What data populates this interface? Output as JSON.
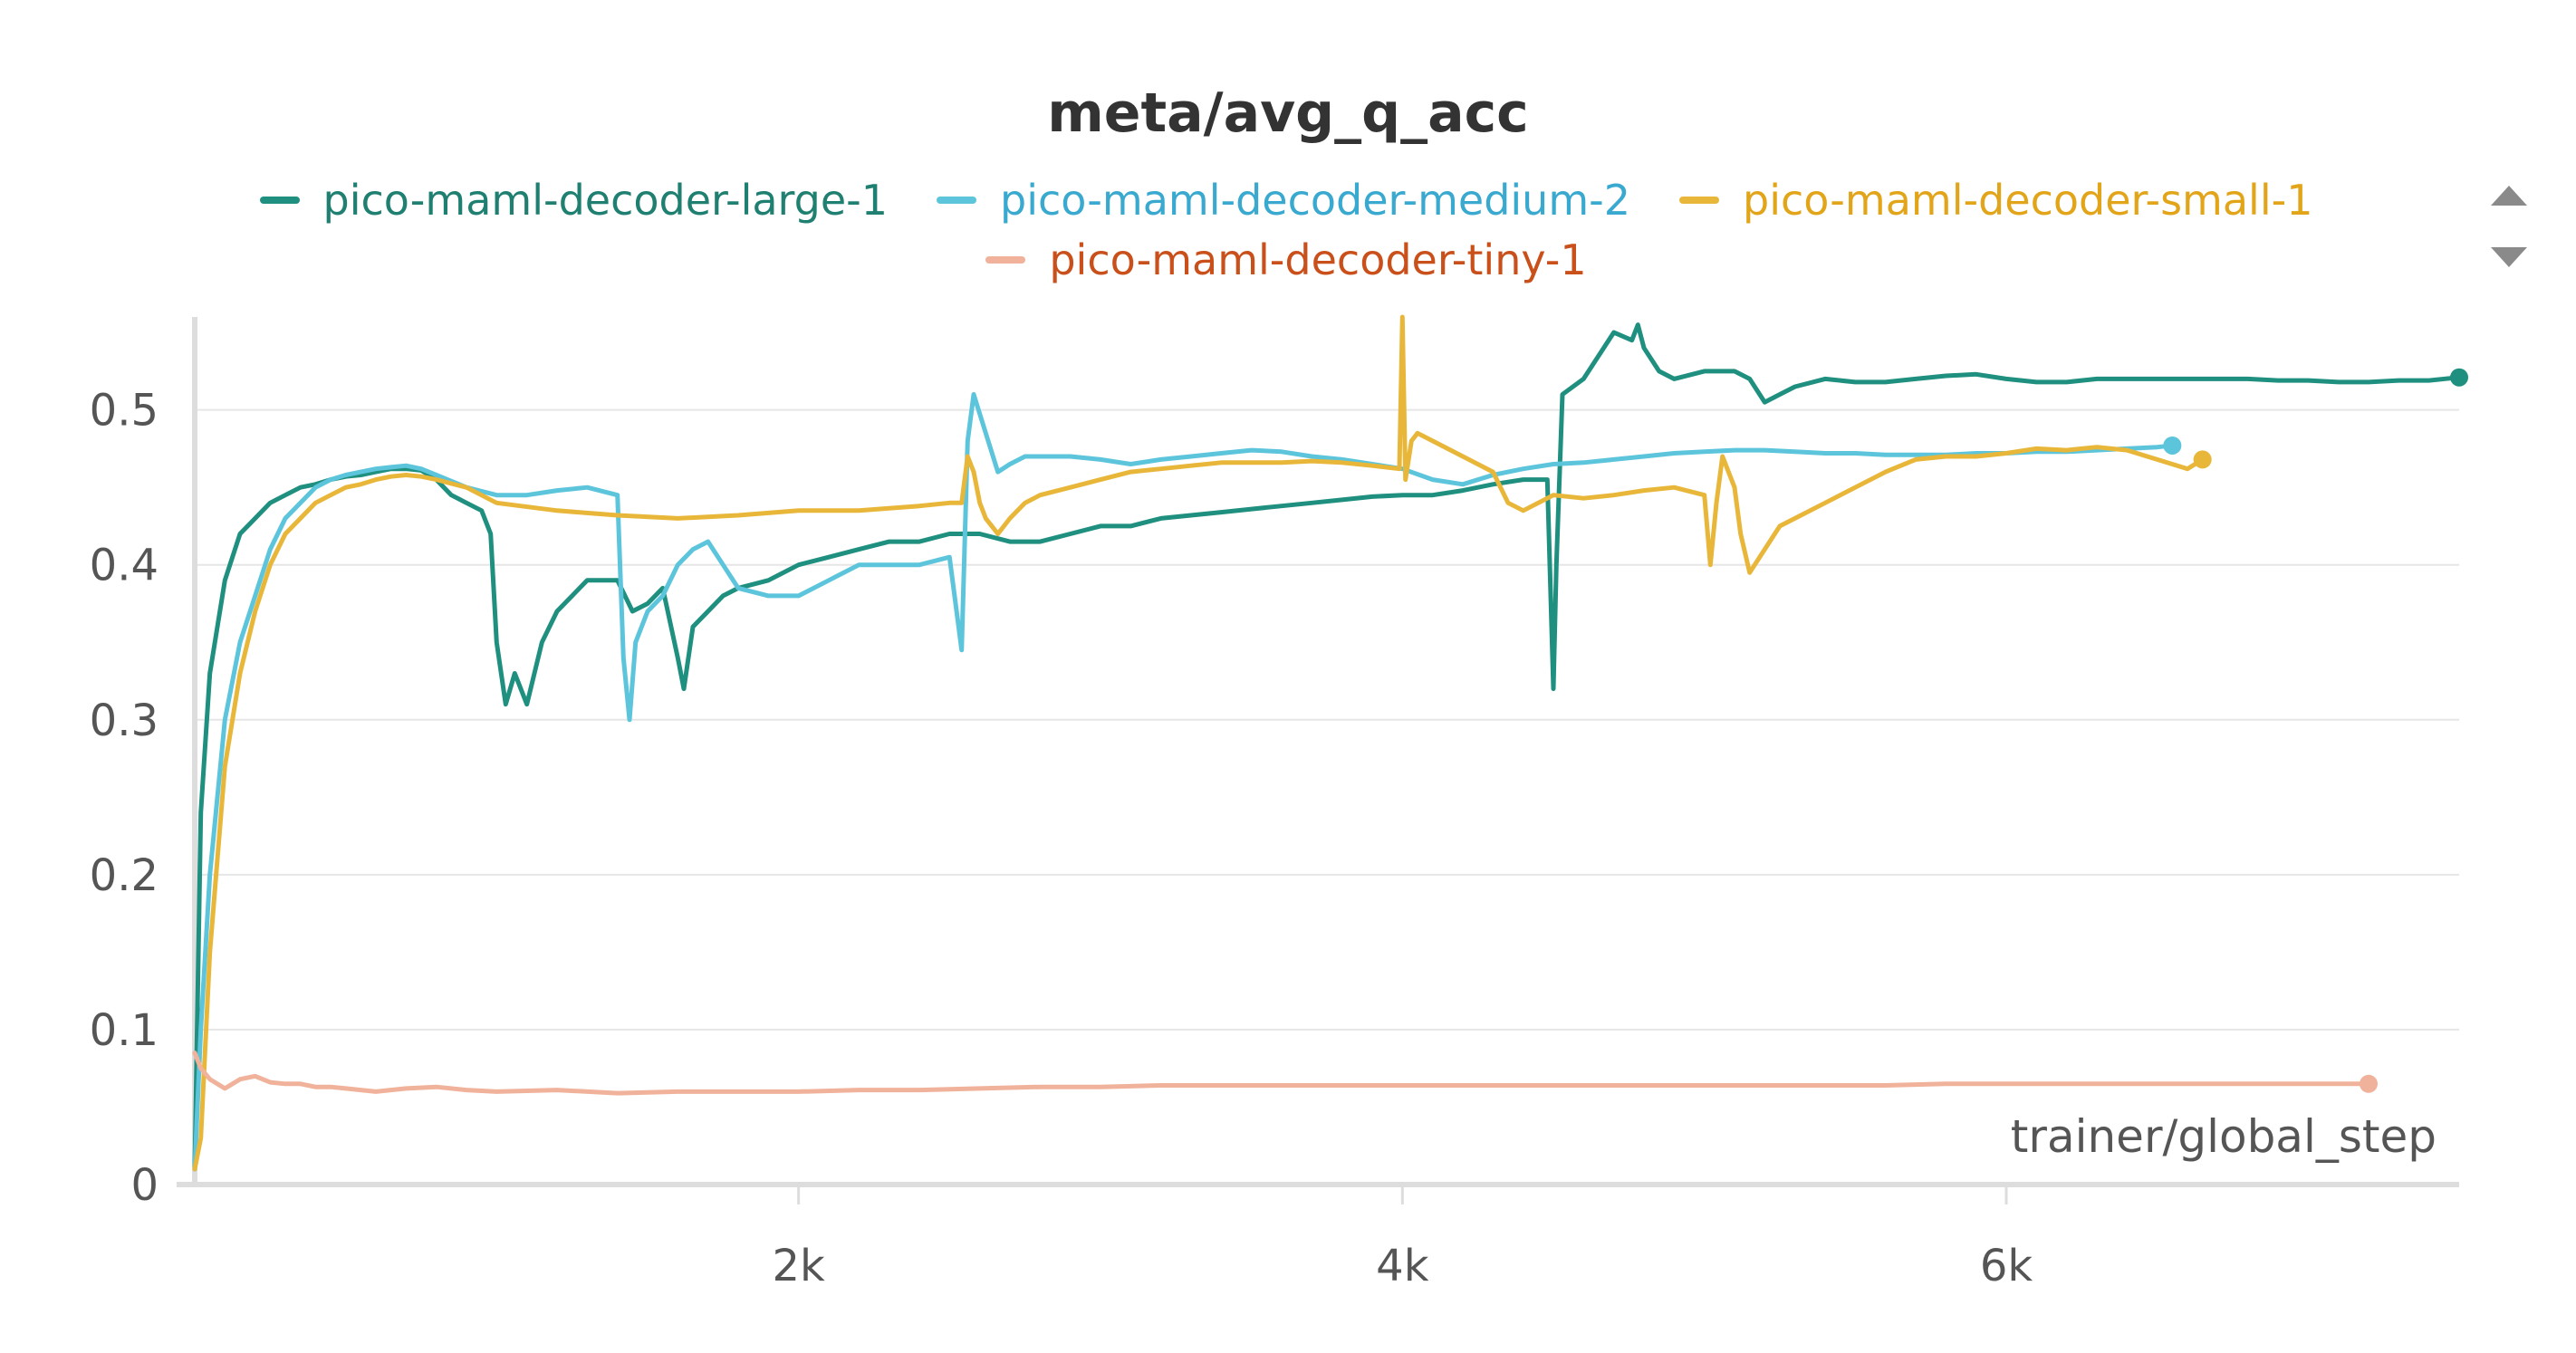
{
  "chart_data": {
    "type": "line",
    "title": "meta/avg_q_acc",
    "xlabel": "trainer/global_step",
    "ylabel": "",
    "xlim": [
      0,
      7500
    ],
    "ylim": [
      0,
      0.56
    ],
    "x_ticks": [
      2000,
      4000,
      6000
    ],
    "x_tick_labels": [
      "2k",
      "4k",
      "6k"
    ],
    "y_ticks": [
      0,
      0.1,
      0.2,
      0.3,
      0.4,
      0.5
    ],
    "y_tick_labels": [
      "0",
      "0.1",
      "0.2",
      "0.3",
      "0.4",
      "0.5"
    ],
    "grid": true,
    "legend_position": "top",
    "series": [
      {
        "name": "pico-maml-decoder-large-1",
        "color": "#1f8f7f",
        "label_color": "#1f7f70",
        "x": [
          0,
          20,
          50,
          100,
          150,
          200,
          250,
          300,
          350,
          400,
          450,
          500,
          550,
          600,
          650,
          700,
          750,
          800,
          850,
          900,
          950,
          980,
          1000,
          1030,
          1060,
          1100,
          1150,
          1200,
          1300,
          1400,
          1450,
          1500,
          1550,
          1600,
          1620,
          1650,
          1700,
          1750,
          1800,
          1900,
          2000,
          2100,
          2200,
          2300,
          2400,
          2500,
          2550,
          2600,
          2700,
          2800,
          2900,
          3000,
          3100,
          3200,
          3300,
          3400,
          3500,
          3600,
          3700,
          3800,
          3900,
          4000,
          4100,
          4200,
          4300,
          4400,
          4480,
          4500,
          4510,
          4530,
          4600,
          4650,
          4700,
          4760,
          4780,
          4800,
          4850,
          4900,
          5000,
          5100,
          5150,
          5200,
          5250,
          5300,
          5400,
          5500,
          5600,
          5700,
          5800,
          5900,
          6000,
          6100,
          6200,
          6300,
          6400,
          6500,
          6600,
          6700,
          6800,
          6900,
          7000,
          7100,
          7200,
          7300,
          7400,
          7500
        ],
        "y": [
          0.01,
          0.24,
          0.33,
          0.39,
          0.42,
          0.43,
          0.44,
          0.445,
          0.45,
          0.452,
          0.455,
          0.457,
          0.458,
          0.46,
          0.462,
          0.462,
          0.461,
          0.455,
          0.445,
          0.44,
          0.435,
          0.42,
          0.35,
          0.31,
          0.33,
          0.31,
          0.35,
          0.37,
          0.39,
          0.39,
          0.37,
          0.375,
          0.385,
          0.34,
          0.32,
          0.36,
          0.37,
          0.38,
          0.385,
          0.39,
          0.4,
          0.405,
          0.41,
          0.415,
          0.415,
          0.42,
          0.42,
          0.42,
          0.415,
          0.415,
          0.42,
          0.425,
          0.425,
          0.43,
          0.432,
          0.434,
          0.436,
          0.438,
          0.44,
          0.442,
          0.444,
          0.445,
          0.445,
          0.448,
          0.452,
          0.455,
          0.455,
          0.32,
          0.4,
          0.51,
          0.52,
          0.535,
          0.55,
          0.545,
          0.555,
          0.54,
          0.525,
          0.52,
          0.525,
          0.525,
          0.52,
          0.505,
          0.51,
          0.515,
          0.52,
          0.518,
          0.518,
          0.52,
          0.522,
          0.523,
          0.52,
          0.518,
          0.518,
          0.52,
          0.52,
          0.52,
          0.52,
          0.52,
          0.52,
          0.519,
          0.519,
          0.518,
          0.518,
          0.519,
          0.519,
          0.521
        ]
      },
      {
        "name": "pico-maml-decoder-medium-2",
        "color": "#5cc5dc",
        "label_color": "#3aa9cf",
        "x": [
          0,
          20,
          50,
          100,
          150,
          200,
          250,
          300,
          350,
          400,
          450,
          500,
          550,
          600,
          650,
          700,
          750,
          800,
          900,
          1000,
          1100,
          1200,
          1300,
          1400,
          1420,
          1440,
          1460,
          1500,
          1550,
          1600,
          1650,
          1700,
          1750,
          1800,
          1900,
          2000,
          2100,
          2200,
          2300,
          2400,
          2500,
          2540,
          2560,
          2580,
          2620,
          2660,
          2700,
          2750,
          2800,
          2900,
          3000,
          3100,
          3200,
          3300,
          3400,
          3500,
          3600,
          3700,
          3800,
          3900,
          4000,
          4100,
          4200,
          4300,
          4400,
          4500,
          4600,
          4700,
          4800,
          4900,
          5000,
          5100,
          5200,
          5300,
          5400,
          5500,
          5600,
          5700,
          5800,
          5900,
          6000,
          6100,
          6200,
          6300,
          6400,
          6500,
          6550
        ],
        "y": [
          0.01,
          0.1,
          0.2,
          0.3,
          0.35,
          0.38,
          0.41,
          0.43,
          0.44,
          0.45,
          0.455,
          0.458,
          0.46,
          0.462,
          0.463,
          0.464,
          0.462,
          0.458,
          0.45,
          0.445,
          0.445,
          0.448,
          0.45,
          0.445,
          0.34,
          0.3,
          0.35,
          0.37,
          0.38,
          0.4,
          0.41,
          0.415,
          0.4,
          0.385,
          0.38,
          0.38,
          0.39,
          0.4,
          0.4,
          0.4,
          0.405,
          0.345,
          0.48,
          0.51,
          0.485,
          0.46,
          0.465,
          0.47,
          0.47,
          0.47,
          0.468,
          0.465,
          0.468,
          0.47,
          0.472,
          0.474,
          0.473,
          0.47,
          0.468,
          0.465,
          0.462,
          0.455,
          0.452,
          0.458,
          0.462,
          0.465,
          0.466,
          0.468,
          0.47,
          0.472,
          0.473,
          0.474,
          0.474,
          0.473,
          0.472,
          0.472,
          0.471,
          0.471,
          0.471,
          0.472,
          0.472,
          0.473,
          0.473,
          0.474,
          0.475,
          0.476,
          0.477
        ]
      },
      {
        "name": "pico-maml-decoder-small-1",
        "color": "#e8b73a",
        "label_color": "#e2a51a",
        "x": [
          0,
          20,
          50,
          100,
          150,
          200,
          250,
          300,
          350,
          400,
          450,
          500,
          550,
          600,
          650,
          700,
          750,
          800,
          900,
          1000,
          1200,
          1400,
          1600,
          1800,
          2000,
          2200,
          2400,
          2500,
          2540,
          2560,
          2580,
          2600,
          2620,
          2660,
          2700,
          2750,
          2800,
          2900,
          3000,
          3100,
          3200,
          3300,
          3400,
          3500,
          3600,
          3700,
          3800,
          3900,
          3990,
          4000,
          4010,
          4030,
          4050,
          4100,
          4200,
          4300,
          4350,
          4400,
          4450,
          4500,
          4600,
          4700,
          4800,
          4900,
          5000,
          5020,
          5040,
          5060,
          5100,
          5120,
          5150,
          5200,
          5250,
          5300,
          5400,
          5500,
          5600,
          5700,
          5800,
          5900,
          6000,
          6100,
          6200,
          6300,
          6400,
          6500,
          6600,
          6650
        ],
        "y": [
          0.01,
          0.03,
          0.15,
          0.27,
          0.33,
          0.37,
          0.4,
          0.42,
          0.43,
          0.44,
          0.445,
          0.45,
          0.452,
          0.455,
          0.457,
          0.458,
          0.457,
          0.455,
          0.45,
          0.44,
          0.435,
          0.432,
          0.43,
          0.432,
          0.435,
          0.435,
          0.438,
          0.44,
          0.44,
          0.47,
          0.46,
          0.44,
          0.43,
          0.42,
          0.43,
          0.44,
          0.445,
          0.45,
          0.455,
          0.46,
          0.462,
          0.464,
          0.466,
          0.466,
          0.466,
          0.467,
          0.466,
          0.464,
          0.462,
          0.56,
          0.455,
          0.48,
          0.485,
          0.48,
          0.47,
          0.46,
          0.44,
          0.435,
          0.44,
          0.445,
          0.443,
          0.445,
          0.448,
          0.45,
          0.445,
          0.4,
          0.44,
          0.47,
          0.45,
          0.42,
          0.395,
          0.41,
          0.425,
          0.43,
          0.44,
          0.45,
          0.46,
          0.468,
          0.47,
          0.47,
          0.472,
          0.475,
          0.474,
          0.476,
          0.474,
          0.468,
          0.462,
          0.468
        ]
      },
      {
        "name": "pico-maml-decoder-tiny-1",
        "color": "#f0b29a",
        "label_color": "#c9501a",
        "x": [
          0,
          20,
          50,
          100,
          150,
          200,
          250,
          300,
          350,
          400,
          450,
          500,
          600,
          700,
          800,
          900,
          1000,
          1200,
          1400,
          1600,
          1800,
          2000,
          2200,
          2400,
          2600,
          2800,
          3000,
          3200,
          3400,
          3600,
          3800,
          4000,
          4200,
          4400,
          4600,
          4800,
          5000,
          5200,
          5400,
          5600,
          5800,
          6000,
          6200,
          6400,
          6600,
          6800,
          7000,
          7200
        ],
        "y": [
          0.085,
          0.075,
          0.068,
          0.062,
          0.068,
          0.07,
          0.066,
          0.065,
          0.065,
          0.063,
          0.063,
          0.062,
          0.06,
          0.062,
          0.063,
          0.061,
          0.06,
          0.061,
          0.059,
          0.06,
          0.06,
          0.06,
          0.061,
          0.061,
          0.062,
          0.063,
          0.063,
          0.064,
          0.064,
          0.064,
          0.064,
          0.064,
          0.064,
          0.064,
          0.064,
          0.064,
          0.064,
          0.064,
          0.064,
          0.064,
          0.065,
          0.065,
          0.065,
          0.065,
          0.065,
          0.065,
          0.065,
          0.065
        ]
      }
    ]
  }
}
